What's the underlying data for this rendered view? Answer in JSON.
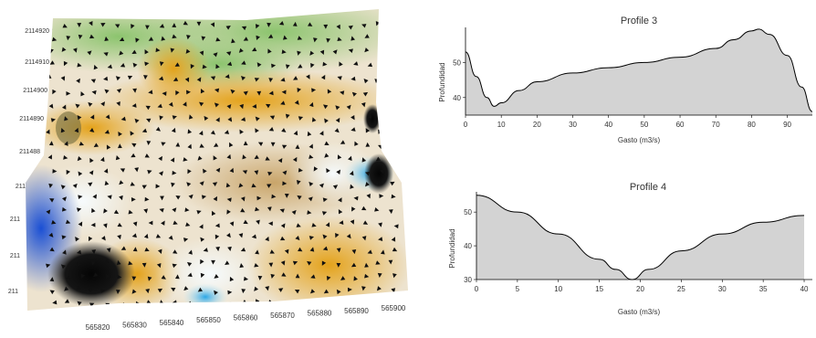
{
  "chart_data": [
    {
      "type": "surface",
      "title": "",
      "x_ticks": [
        "565820",
        "565830",
        "565840",
        "565850",
        "565860",
        "565870",
        "565880",
        "565890",
        "565900"
      ],
      "y_ticks": [
        "2114920",
        "2114910",
        "2114900",
        "2114890",
        "211488",
        "211",
        "211",
        "211",
        "211"
      ],
      "colors": {
        "low": "#1c4fd0",
        "mid_low": "#e8f4f8",
        "mid": "#f0e8d8",
        "high": "#e7a31c",
        "peak": "#8cc46e",
        "pit": "#0a0a0a"
      }
    },
    {
      "type": "area",
      "title": "Profile 3",
      "xlabel": "Gasto (m3/s)",
      "ylabel": "Profundidad",
      "xlim": [
        0,
        97
      ],
      "ylim": [
        35,
        60
      ],
      "x_ticks": [
        0,
        10,
        20,
        30,
        40,
        50,
        60,
        70,
        80,
        90
      ],
      "y_ticks": [
        40,
        50
      ],
      "x": [
        0,
        3,
        6,
        8,
        10,
        15,
        20,
        30,
        40,
        50,
        60,
        70,
        75,
        80,
        82,
        85,
        90,
        94,
        97
      ],
      "y": [
        53,
        46,
        40,
        37.5,
        38.5,
        42,
        44.5,
        47,
        48.5,
        50,
        51.5,
        54,
        56.5,
        59,
        59.5,
        58,
        52,
        43,
        36
      ],
      "fill": "#d3d3d3"
    },
    {
      "type": "area",
      "title": "Profile 4",
      "xlabel": "Gasto (m3/s)",
      "ylabel": "Profundidad",
      "xlim": [
        0,
        41
      ],
      "ylim": [
        30,
        56
      ],
      "x_ticks": [
        0,
        5,
        10,
        15,
        20,
        25,
        30,
        35,
        40
      ],
      "y_ticks": [
        30,
        40,
        50
      ],
      "x": [
        0,
        5,
        10,
        15,
        17,
        19,
        21,
        25,
        30,
        35,
        40
      ],
      "y": [
        55,
        50,
        43.5,
        36,
        33,
        30,
        33,
        38.5,
        43.5,
        47,
        49
      ],
      "fill": "#d3d3d3"
    }
  ]
}
